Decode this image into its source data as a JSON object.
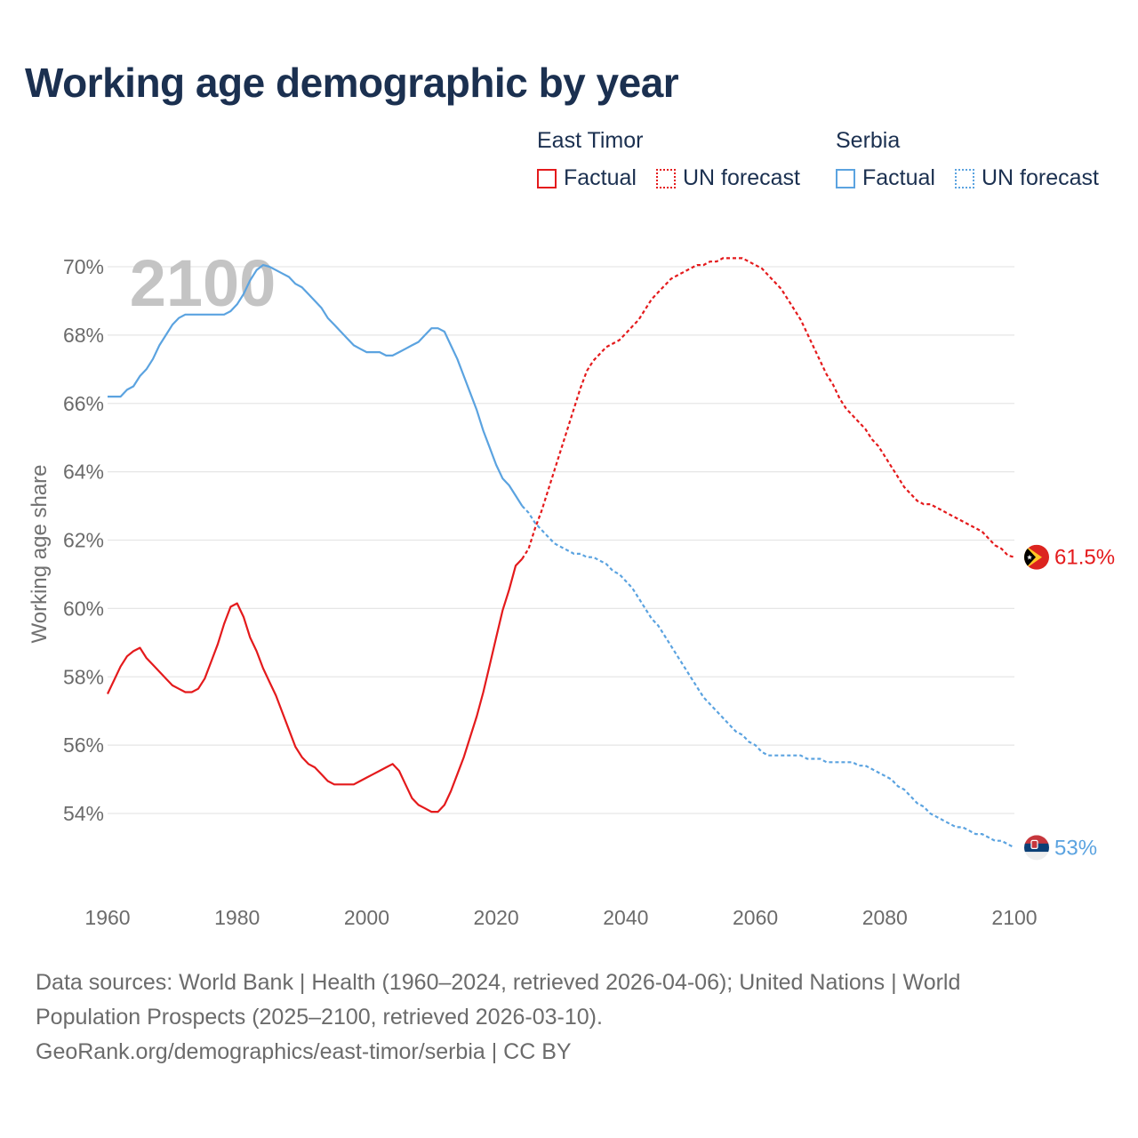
{
  "title": "Working age demographic by year",
  "legend": {
    "groups": [
      {
        "name": "East Timor",
        "factual_label": "Factual",
        "forecast_label": "UN forecast",
        "color": "#e41a1c"
      },
      {
        "name": "Serbia",
        "factual_label": "Factual",
        "forecast_label": "UN forecast",
        "color": "#5ba3e0"
      }
    ]
  },
  "chart_data": {
    "type": "line",
    "title": "Working age demographic by year",
    "xlabel": "",
    "ylabel": "Working age share",
    "xlim": [
      1960,
      2100
    ],
    "ylim": [
      52.2,
      70.5
    ],
    "x_ticks": [
      1960,
      1980,
      2000,
      2020,
      2040,
      2060,
      2080,
      2100
    ],
    "x_tick_labels": [
      "1960",
      "1980",
      "2000",
      "2020",
      "2040",
      "2060",
      "2080",
      "2100"
    ],
    "y_ticks": [
      54,
      56,
      58,
      60,
      62,
      64,
      66,
      68,
      70
    ],
    "y_tick_labels": [
      "54%",
      "56%",
      "58%",
      "60%",
      "62%",
      "64%",
      "66%",
      "68%",
      "70%"
    ],
    "year_watermark": "2100",
    "factual_range": "1960–2024",
    "forecast_range": "2025–2100",
    "series": [
      {
        "name": "East Timor",
        "color": "#e41a1c",
        "end_label": "61.5%",
        "factual": {
          "x": [
            1960,
            1961,
            1962,
            1963,
            1964,
            1965,
            1966,
            1967,
            1968,
            1969,
            1970,
            1971,
            1972,
            1973,
            1974,
            1975,
            1976,
            1977,
            1978,
            1979,
            1980,
            1981,
            1982,
            1983,
            1984,
            1985,
            1986,
            1987,
            1988,
            1989,
            1990,
            1991,
            1992,
            1993,
            1994,
            1995,
            1996,
            1997,
            1998,
            1999,
            2000,
            2001,
            2002,
            2003,
            2004,
            2005,
            2006,
            2007,
            2008,
            2009,
            2010,
            2011,
            2012,
            2013,
            2014,
            2015,
            2016,
            2017,
            2018,
            2019,
            2020,
            2021,
            2022,
            2023,
            2024
          ],
          "y": [
            57.5,
            57.9,
            58.3,
            58.6,
            58.75,
            58.85,
            58.55,
            58.35,
            58.15,
            57.95,
            57.75,
            57.65,
            57.55,
            57.55,
            57.65,
            57.95,
            58.45,
            58.95,
            59.55,
            60.05,
            60.15,
            59.75,
            59.15,
            58.75,
            58.25,
            57.85,
            57.45,
            56.95,
            56.45,
            55.95,
            55.65,
            55.45,
            55.35,
            55.15,
            54.95,
            54.85,
            54.85,
            54.85,
            54.85,
            54.95,
            55.05,
            55.15,
            55.25,
            55.35,
            55.45,
            55.25,
            54.85,
            54.45,
            54.25,
            54.15,
            54.05,
            54.05,
            54.25,
            54.65,
            55.15,
            55.65,
            56.25,
            56.85,
            57.55,
            58.35,
            59.15,
            59.95,
            60.55,
            61.25,
            61.45
          ]
        },
        "forecast": {
          "x": [
            2024,
            2025,
            2026,
            2027,
            2028,
            2029,
            2030,
            2031,
            2032,
            2033,
            2034,
            2035,
            2036,
            2037,
            2038,
            2039,
            2040,
            2041,
            2042,
            2043,
            2044,
            2045,
            2046,
            2047,
            2048,
            2049,
            2050,
            2051,
            2052,
            2053,
            2054,
            2055,
            2056,
            2057,
            2058,
            2059,
            2060,
            2061,
            2062,
            2063,
            2064,
            2065,
            2066,
            2067,
            2068,
            2069,
            2070,
            2071,
            2072,
            2073,
            2074,
            2075,
            2076,
            2077,
            2078,
            2079,
            2080,
            2081,
            2082,
            2083,
            2084,
            2085,
            2086,
            2087,
            2088,
            2089,
            2090,
            2091,
            2092,
            2093,
            2094,
            2095,
            2096,
            2097,
            2098,
            2099,
            2100
          ],
          "y": [
            61.45,
            61.75,
            62.35,
            62.85,
            63.45,
            64.05,
            64.65,
            65.25,
            65.85,
            66.45,
            66.95,
            67.25,
            67.45,
            67.65,
            67.75,
            67.85,
            68.05,
            68.25,
            68.45,
            68.75,
            69.05,
            69.25,
            69.45,
            69.65,
            69.75,
            69.85,
            69.95,
            70.05,
            70.05,
            70.15,
            70.15,
            70.25,
            70.25,
            70.25,
            70.25,
            70.15,
            70.05,
            69.95,
            69.75,
            69.55,
            69.35,
            69.05,
            68.75,
            68.45,
            68.05,
            67.65,
            67.25,
            66.85,
            66.55,
            66.15,
            65.85,
            65.65,
            65.45,
            65.25,
            64.95,
            64.75,
            64.45,
            64.15,
            63.85,
            63.55,
            63.35,
            63.15,
            63.05,
            63.05,
            62.95,
            62.85,
            62.75,
            62.65,
            62.55,
            62.45,
            62.35,
            62.25,
            62.05,
            61.85,
            61.75,
            61.55,
            61.5
          ]
        }
      },
      {
        "name": "Serbia",
        "color": "#5ba3e0",
        "end_label": "53%",
        "factual": {
          "x": [
            1960,
            1961,
            1962,
            1963,
            1964,
            1965,
            1966,
            1967,
            1968,
            1969,
            1970,
            1971,
            1972,
            1973,
            1974,
            1975,
            1976,
            1977,
            1978,
            1979,
            1980,
            1981,
            1982,
            1983,
            1984,
            1985,
            1986,
            1987,
            1988,
            1989,
            1990,
            1991,
            1992,
            1993,
            1994,
            1995,
            1996,
            1997,
            1998,
            1999,
            2000,
            2001,
            2002,
            2003,
            2004,
            2005,
            2006,
            2007,
            2008,
            2009,
            2010,
            2011,
            2012,
            2013,
            2014,
            2015,
            2016,
            2017,
            2018,
            2019,
            2020,
            2021,
            2022,
            2023,
            2024
          ],
          "y": [
            66.2,
            66.2,
            66.2,
            66.4,
            66.5,
            66.8,
            67.0,
            67.3,
            67.7,
            68.0,
            68.3,
            68.5,
            68.6,
            68.6,
            68.6,
            68.6,
            68.6,
            68.6,
            68.6,
            68.7,
            68.9,
            69.2,
            69.6,
            69.9,
            70.05,
            70.0,
            69.9,
            69.8,
            69.7,
            69.5,
            69.4,
            69.2,
            69.0,
            68.8,
            68.5,
            68.3,
            68.1,
            67.9,
            67.7,
            67.6,
            67.5,
            67.5,
            67.5,
            67.4,
            67.4,
            67.5,
            67.6,
            67.7,
            67.8,
            68.0,
            68.2,
            68.2,
            68.1,
            67.7,
            67.3,
            66.8,
            66.3,
            65.8,
            65.2,
            64.7,
            64.2,
            63.8,
            63.6,
            63.3,
            63.0
          ]
        },
        "forecast": {
          "x": [
            2024,
            2025,
            2026,
            2027,
            2028,
            2029,
            2030,
            2031,
            2032,
            2033,
            2034,
            2035,
            2036,
            2037,
            2038,
            2039,
            2040,
            2041,
            2042,
            2043,
            2044,
            2045,
            2046,
            2047,
            2048,
            2049,
            2050,
            2051,
            2052,
            2053,
            2054,
            2055,
            2056,
            2057,
            2058,
            2059,
            2060,
            2061,
            2062,
            2063,
            2064,
            2065,
            2066,
            2067,
            2068,
            2069,
            2070,
            2071,
            2072,
            2073,
            2074,
            2075,
            2076,
            2077,
            2078,
            2079,
            2080,
            2081,
            2082,
            2083,
            2084,
            2085,
            2086,
            2087,
            2088,
            2089,
            2090,
            2091,
            2092,
            2093,
            2094,
            2095,
            2096,
            2097,
            2098,
            2099,
            2100
          ],
          "y": [
            63.0,
            62.8,
            62.5,
            62.3,
            62.1,
            61.9,
            61.8,
            61.7,
            61.6,
            61.6,
            61.5,
            61.5,
            61.4,
            61.3,
            61.1,
            61.0,
            60.8,
            60.6,
            60.3,
            60.0,
            59.7,
            59.5,
            59.2,
            58.9,
            58.6,
            58.3,
            58.0,
            57.7,
            57.4,
            57.2,
            57.0,
            56.8,
            56.6,
            56.4,
            56.3,
            56.1,
            56.0,
            55.8,
            55.7,
            55.7,
            55.7,
            55.7,
            55.7,
            55.7,
            55.6,
            55.6,
            55.6,
            55.5,
            55.5,
            55.5,
            55.5,
            55.5,
            55.4,
            55.4,
            55.3,
            55.2,
            55.1,
            55.0,
            54.8,
            54.7,
            54.5,
            54.3,
            54.2,
            54.0,
            53.9,
            53.8,
            53.7,
            53.6,
            53.6,
            53.5,
            53.4,
            53.4,
            53.3,
            53.2,
            53.2,
            53.1,
            53.0
          ]
        }
      }
    ]
  },
  "sources": {
    "line1": "Data sources: World Bank | Health (1960–2024, retrieved 2026-04-06); United Nations | World",
    "line2": "Population Prospects (2025–2100, retrieved 2026-03-10).",
    "line3": "GeoRank.org/demographics/east-timor/serbia | CC BY"
  }
}
